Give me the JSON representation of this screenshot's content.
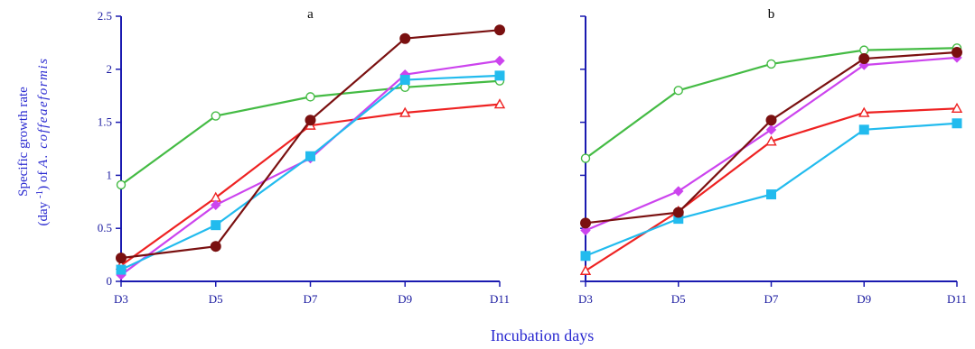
{
  "figure": {
    "ylabel_line1": "Specific growth rate",
    "ylabel_line2": "(day ",
    "ylabel_sup": "-1",
    "ylabel_line2b": ") of ",
    "ylabel_species": "A. coffeaeformis",
    "xlabel": "Incubation days"
  },
  "chart_data": [
    {
      "type": "line",
      "title": "a",
      "categories": [
        "D3",
        "D5",
        "D7",
        "D9",
        "D11"
      ],
      "ylim": [
        0,
        2.5
      ],
      "yticks": [
        "0",
        "0.5",
        "1",
        "1.5",
        "2",
        "2.5"
      ],
      "show_y_ticklabels": true,
      "grid": false,
      "series": [
        {
          "color": "#44bb44",
          "marker": "circle-open",
          "values": [
            0.91,
            1.56,
            1.74,
            1.83,
            1.89
          ]
        },
        {
          "color": "#ee2222",
          "marker": "triangle-open",
          "values": [
            0.15,
            0.79,
            1.47,
            1.59,
            1.67
          ]
        },
        {
          "color": "#cc44ee",
          "marker": "diamond",
          "values": [
            0.06,
            0.72,
            1.16,
            1.95,
            2.08
          ]
        },
        {
          "color": "#22bbee",
          "marker": "square",
          "values": [
            0.11,
            0.53,
            1.18,
            1.9,
            1.94
          ]
        },
        {
          "color": "#7a1010",
          "marker": "circle-filled",
          "values": [
            0.22,
            0.33,
            1.52,
            2.29,
            2.37
          ]
        }
      ]
    },
    {
      "type": "line",
      "title": "b",
      "categories": [
        "D3",
        "D5",
        "D7",
        "D9",
        "D11"
      ],
      "ylim": [
        0,
        2.5
      ],
      "yticks": [
        "0",
        "0.5",
        "1",
        "1.5",
        "2",
        "2.5"
      ],
      "show_y_ticklabels": false,
      "grid": false,
      "series": [
        {
          "color": "#44bb44",
          "marker": "circle-open",
          "values": [
            1.16,
            1.8,
            2.05,
            2.18,
            2.2
          ]
        },
        {
          "color": "#ee2222",
          "marker": "triangle-open",
          "values": [
            0.1,
            0.66,
            1.32,
            1.59,
            1.63
          ]
        },
        {
          "color": "#cc44ee",
          "marker": "diamond",
          "values": [
            0.48,
            0.85,
            1.43,
            2.04,
            2.11
          ]
        },
        {
          "color": "#22bbee",
          "marker": "square",
          "values": [
            0.24,
            0.59,
            0.82,
            1.43,
            1.49
          ]
        },
        {
          "color": "#7a1010",
          "marker": "circle-filled",
          "values": [
            0.55,
            0.65,
            1.52,
            2.1,
            2.16
          ]
        }
      ]
    }
  ]
}
